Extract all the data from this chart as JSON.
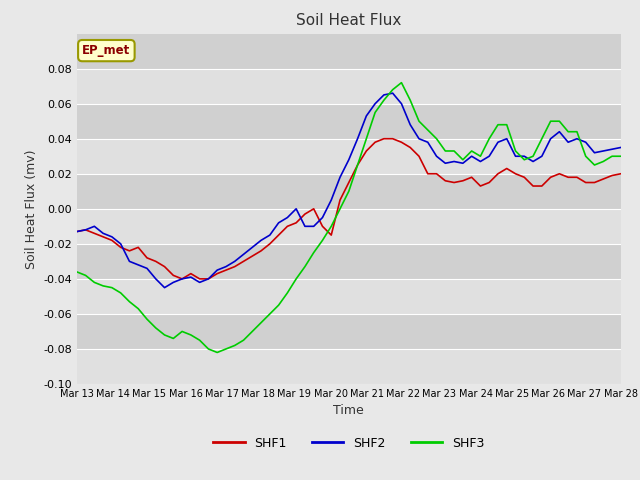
{
  "title": "Soil Heat Flux",
  "xlabel": "Time",
  "ylabel": "Soil Heat Flux (mv)",
  "ylim": [
    -0.1,
    0.1
  ],
  "yticks": [
    -0.1,
    -0.08,
    -0.06,
    -0.04,
    -0.02,
    0.0,
    0.02,
    0.04,
    0.06,
    0.08
  ],
  "x_labels": [
    "Mar 13",
    "Mar 14",
    "Mar 15",
    "Mar 16",
    "Mar 17",
    "Mar 18",
    "Mar 19",
    "Mar 20",
    "Mar 21",
    "Mar 22",
    "Mar 23",
    "Mar 24",
    "Mar 25",
    "Mar 26",
    "Mar 27",
    "Mar 28"
  ],
  "annotation": "EP_met",
  "bg_color_dark": "#d0d0d0",
  "bg_color_light": "#e0e0e0",
  "grid_color": "#ffffff",
  "fig_bg": "#e8e8e8",
  "shf1_color": "#cc0000",
  "shf2_color": "#0000cc",
  "shf3_color": "#00cc00",
  "shf1": [
    -0.013,
    -0.012,
    -0.014,
    -0.016,
    -0.018,
    -0.022,
    -0.024,
    -0.022,
    -0.028,
    -0.03,
    -0.033,
    -0.038,
    -0.04,
    -0.037,
    -0.04,
    -0.04,
    -0.037,
    -0.035,
    -0.033,
    -0.03,
    -0.027,
    -0.024,
    -0.02,
    -0.015,
    -0.01,
    -0.008,
    -0.003,
    0.0,
    -0.01,
    -0.015,
    0.005,
    0.015,
    0.025,
    0.033,
    0.038,
    0.04,
    0.04,
    0.038,
    0.035,
    0.03,
    0.02,
    0.02,
    0.016,
    0.015,
    0.016,
    0.018,
    0.013,
    0.015,
    0.02,
    0.023,
    0.02,
    0.018,
    0.013,
    0.013,
    0.018,
    0.02,
    0.018,
    0.018,
    0.015,
    0.015,
    0.017,
    0.019,
    0.02
  ],
  "shf2": [
    -0.013,
    -0.012,
    -0.01,
    -0.014,
    -0.016,
    -0.02,
    -0.03,
    -0.032,
    -0.034,
    -0.04,
    -0.045,
    -0.042,
    -0.04,
    -0.039,
    -0.042,
    -0.04,
    -0.035,
    -0.033,
    -0.03,
    -0.026,
    -0.022,
    -0.018,
    -0.015,
    -0.008,
    -0.005,
    0.0,
    -0.01,
    -0.01,
    -0.005,
    0.005,
    0.018,
    0.028,
    0.04,
    0.053,
    0.06,
    0.065,
    0.066,
    0.06,
    0.048,
    0.04,
    0.038,
    0.03,
    0.026,
    0.027,
    0.026,
    0.03,
    0.027,
    0.03,
    0.038,
    0.04,
    0.03,
    0.03,
    0.027,
    0.03,
    0.04,
    0.044,
    0.038,
    0.04,
    0.038,
    0.032,
    0.033,
    0.034,
    0.035
  ],
  "shf3": [
    -0.036,
    -0.038,
    -0.042,
    -0.044,
    -0.045,
    -0.048,
    -0.053,
    -0.057,
    -0.063,
    -0.068,
    -0.072,
    -0.074,
    -0.07,
    -0.072,
    -0.075,
    -0.08,
    -0.082,
    -0.08,
    -0.078,
    -0.075,
    -0.07,
    -0.065,
    -0.06,
    -0.055,
    -0.048,
    -0.04,
    -0.033,
    -0.025,
    -0.018,
    -0.01,
    0.0,
    0.01,
    0.025,
    0.04,
    0.055,
    0.062,
    0.068,
    0.072,
    0.062,
    0.05,
    0.045,
    0.04,
    0.033,
    0.033,
    0.028,
    0.033,
    0.03,
    0.04,
    0.048,
    0.048,
    0.033,
    0.028,
    0.03,
    0.04,
    0.05,
    0.05,
    0.044,
    0.044,
    0.03,
    0.025,
    0.027,
    0.03,
    0.03
  ]
}
